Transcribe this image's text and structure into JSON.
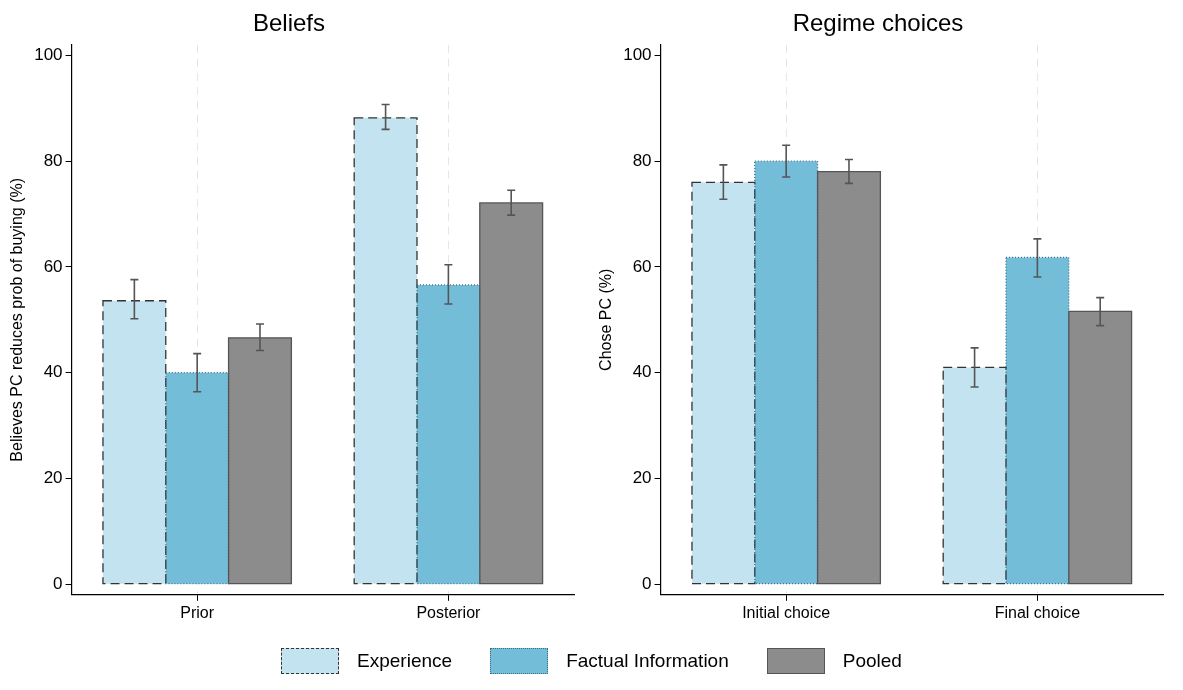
{
  "chart_data": [
    {
      "type": "bar",
      "title": "Beliefs",
      "ylabel": "Believes PC reduces prob of buying (%)",
      "categories": [
        "Prior",
        "Posterior"
      ],
      "ylim": [
        -2,
        102
      ],
      "yticks": [
        0,
        20,
        40,
        60,
        80,
        100
      ],
      "grid": "x",
      "legend": "bottom",
      "series": [
        {
          "name": "Experience",
          "color": "#c4e3f0",
          "line_style": "dashed",
          "values": [
            53.6,
            88.2
          ],
          "errors": [
            [
              50.2,
              57.6
            ],
            [
              86,
              90.7
            ]
          ]
        },
        {
          "name": "Factual Information",
          "color": "#73bdd9",
          "line_style": "dotted",
          "values": [
            40,
            56.6
          ],
          "errors": [
            [
              36.4,
              43.6
            ],
            [
              53,
              60.4
            ]
          ]
        },
        {
          "name": "Pooled",
          "color": "#8c8c8c",
          "line_style": "solid",
          "values": [
            46.6,
            72.1
          ],
          "errors": [
            [
              44.2,
              49.2
            ],
            [
              69.8,
              74.5
            ]
          ]
        }
      ]
    },
    {
      "type": "bar",
      "title": "Regime choices",
      "ylabel": "Chose PC (%)",
      "categories": [
        "Initial choice",
        "Final choice"
      ],
      "ylim": [
        -2,
        102
      ],
      "yticks": [
        0,
        20,
        40,
        60,
        80,
        100
      ],
      "grid": "x",
      "legend": "bottom",
      "series": [
        {
          "name": "Experience",
          "color": "#c4e3f0",
          "line_style": "dashed",
          "values": [
            76,
            41
          ],
          "errors": [
            [
              72.8,
              79.3
            ],
            [
              37.3,
              44.7
            ]
          ]
        },
        {
          "name": "Factual Information",
          "color": "#73bdd9",
          "line_style": "dotted",
          "values": [
            80,
            61.8
          ],
          "errors": [
            [
              77,
              83
            ],
            [
              58.1,
              65.3
            ]
          ]
        },
        {
          "name": "Pooled",
          "color": "#8c8c8c",
          "line_style": "solid",
          "values": [
            78,
            51.6
          ],
          "errors": [
            [
              75.8,
              80.3
            ],
            [
              48.9,
              54.2
            ]
          ]
        }
      ]
    }
  ]
}
